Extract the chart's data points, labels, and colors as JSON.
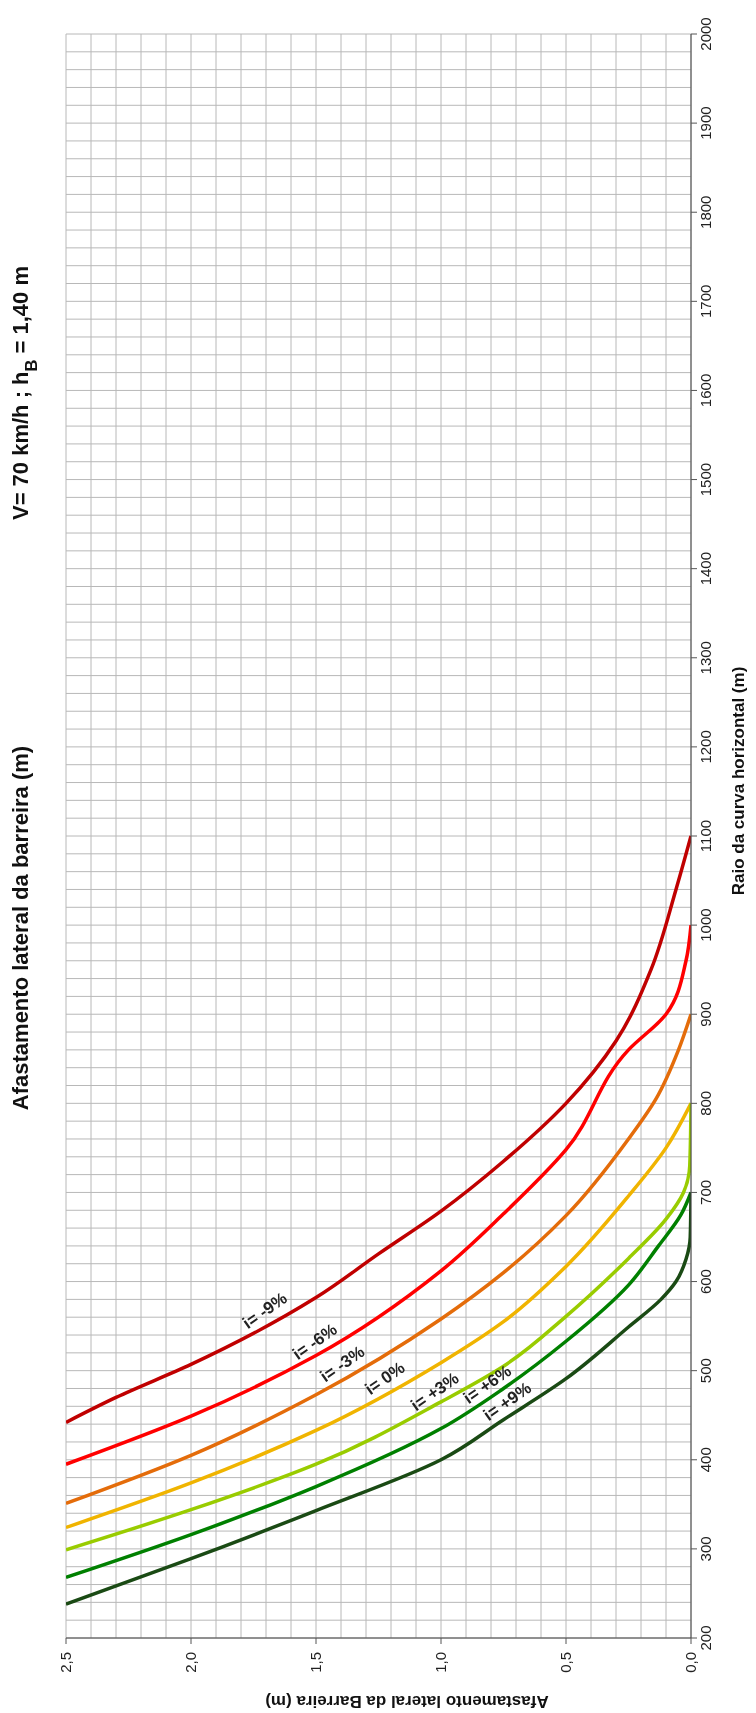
{
  "chart_data": {
    "type": "line",
    "title": "Afastamento lateral da barreira (m)",
    "subtitle": "V= 70 km/h ; h$_{B}$ = 1,40 m",
    "xlabel": "Afastamento lateral da Barreira (m)",
    "ylabel": "Raio da curva horizontal (m)",
    "xlim": [
      2.5,
      0
    ],
    "xticks": [
      {
        "value": 2.5,
        "label": "2,5"
      },
      {
        "value": 2.4,
        "label": null
      },
      {
        "value": 2.3,
        "label": null
      },
      {
        "value": 2.2,
        "label": null
      },
      {
        "value": 2.1,
        "label": null
      },
      {
        "value": 2,
        "label": "2,0"
      },
      {
        "value": 1.9,
        "label": null
      },
      {
        "value": 1.8,
        "label": null
      },
      {
        "value": 1.7,
        "label": null
      },
      {
        "value": 1.6,
        "label": null
      },
      {
        "value": 1.5,
        "label": "1,5"
      },
      {
        "value": 1.4,
        "label": null
      },
      {
        "value": 1.3,
        "label": null
      },
      {
        "value": 1.2,
        "label": null
      },
      {
        "value": 1.1,
        "label": null
      },
      {
        "value": 1,
        "label": "1,0"
      },
      {
        "value": 0.9,
        "label": null
      },
      {
        "value": 0.8,
        "label": null
      },
      {
        "value": 0.7,
        "label": null
      },
      {
        "value": 0.6,
        "label": null
      },
      {
        "value": 0.5,
        "label": "0,5"
      },
      {
        "value": 0.4,
        "label": null
      },
      {
        "value": 0.3,
        "label": null
      },
      {
        "value": 0.2,
        "label": null
      },
      {
        "value": 0.1,
        "label": null
      },
      {
        "value": 0,
        "label": "0,0"
      }
    ],
    "ylim": [
      200,
      2000
    ],
    "yticks": [
      200,
      {
        "value": 220,
        "label": null
      },
      {
        "value": 240,
        "label": null
      },
      {
        "value": 260,
        "label": null
      },
      {
        "value": 280,
        "label": null
      },
      300,
      {
        "value": 320,
        "label": null
      },
      {
        "value": 340,
        "label": null
      },
      {
        "value": 360,
        "label": null
      },
      {
        "value": 380,
        "label": null
      },
      400,
      {
        "value": 420,
        "label": null
      },
      {
        "value": 440,
        "label": null
      },
      {
        "value": 460,
        "label": null
      },
      {
        "value": 480,
        "label": null
      },
      500,
      {
        "value": 520,
        "label": null
      },
      {
        "value": 540,
        "label": null
      },
      {
        "value": 560,
        "label": null
      },
      {
        "value": 580,
        "label": null
      },
      600,
      {
        "value": 620,
        "label": null
      },
      {
        "value": 640,
        "label": null
      },
      {
        "value": 660,
        "label": null
      },
      {
        "value": 680,
        "label": null
      },
      700,
      {
        "value": 720,
        "label": null
      },
      {
        "value": 740,
        "label": null
      },
      {
        "value": 760,
        "label": null
      },
      {
        "value": 780,
        "label": null
      },
      800,
      {
        "value": 820,
        "label": null
      },
      {
        "value": 840,
        "label": null
      },
      {
        "value": 860,
        "label": null
      },
      {
        "value": 880,
        "label": null
      },
      900,
      {
        "value": 920,
        "label": null
      },
      {
        "value": 940,
        "label": null
      },
      {
        "value": 960,
        "label": null
      },
      {
        "value": 980,
        "label": null
      },
      1000,
      {
        "value": 1020,
        "label": null
      },
      {
        "value": 1040,
        "label": null
      },
      {
        "value": 1060,
        "label": null
      },
      {
        "value": 1080,
        "label": null
      },
      1100,
      {
        "value": 1120,
        "label": null
      },
      {
        "value": 1140,
        "label": null
      },
      {
        "value": 1160,
        "label": null
      },
      {
        "value": 1180,
        "label": null
      },
      1200,
      {
        "value": 1220,
        "label": null
      },
      {
        "value": 1240,
        "label": null
      },
      {
        "value": 1260,
        "label": null
      },
      {
        "value": 1280,
        "label": null
      },
      1300,
      {
        "value": 1320,
        "label": null
      },
      {
        "value": 1340,
        "label": null
      },
      {
        "value": 1360,
        "label": null
      },
      {
        "value": 1380,
        "label": null
      },
      1400,
      {
        "value": 1420,
        "label": null
      },
      {
        "value": 1440,
        "label": null
      },
      {
        "value": 1460,
        "label": null
      },
      {
        "value": 1480,
        "label": null
      },
      1500,
      {
        "value": 1520,
        "label": null
      },
      {
        "value": 1540,
        "label": null
      },
      {
        "value": 1560,
        "label": null
      },
      {
        "value": 1580,
        "label": null
      },
      1600,
      {
        "value": 1620,
        "label": null
      },
      {
        "value": 1640,
        "label": null
      },
      {
        "value": 1660,
        "label": null
      },
      {
        "value": 1680,
        "label": null
      },
      1700,
      {
        "value": 1720,
        "label": null
      },
      {
        "value": 1740,
        "label": null
      },
      {
        "value": 1760,
        "label": null
      },
      {
        "value": 1780,
        "label": null
      },
      1800,
      {
        "value": 1820,
        "label": null
      },
      {
        "value": 1840,
        "label": null
      },
      {
        "value": 1860,
        "label": null
      },
      {
        "value": 1880,
        "label": null
      },
      1900,
      {
        "value": 1920,
        "label": null
      },
      {
        "value": 1940,
        "label": null
      },
      {
        "value": 1960,
        "label": null
      },
      {
        "value": 1980,
        "label": null
      },
      2000
    ],
    "grid": true,
    "marker": "none",
    "line_style": "solid",
    "series": [
      {
        "color": "#c00000",
        "x": [
          2.5,
          2.3,
          2.0,
          1.5,
          1.25,
          1.0,
          0.75,
          0.5,
          0.3,
          0.16,
          0.06,
          0
        ],
        "values": [
          442,
          470,
          507,
          582,
          631,
          679,
          735,
          800,
          870,
          950,
          1040,
          1100
        ]
      },
      {
        "color": "#ff0000",
        "x": [
          2.5,
          2.0,
          1.5,
          1.0,
          0.75,
          0.5,
          0.25,
          0.1,
          0.02,
          0
        ],
        "values": [
          395,
          449,
          517,
          612,
          676,
          748,
          860,
          900,
          960,
          1000
        ]
      },
      {
        "color": "#e46c0a",
        "x": [
          2.5,
          2.0,
          1.5,
          1.0,
          0.75,
          0.5,
          0.25,
          0.14,
          0.05,
          0
        ],
        "values": [
          351,
          405,
          473,
          558,
          610,
          674,
          760,
          805,
          860,
          900
        ]
      },
      {
        "color": "#f0b400",
        "x": [
          2.5,
          2.0,
          1.5,
          1.0,
          0.75,
          0.5,
          0.25,
          0.1,
          0
        ],
        "values": [
          324,
          374,
          433,
          509,
          555,
          617,
          696,
          750,
          800
        ]
      },
      {
        "color": "#99cc00",
        "x": [
          2.5,
          2.0,
          1.5,
          1.0,
          0.75,
          0.5,
          0.25,
          0.1,
          0.03,
          0.005,
          0
        ],
        "values": [
          299,
          344,
          395,
          465,
          505,
          561,
          626,
          670,
          700,
          730,
          800
        ]
      },
      {
        "color": "#008000",
        "x": [
          2.5,
          2.0,
          1.5,
          1.0,
          0.75,
          0.5,
          0.25,
          0.13,
          0.04,
          0
        ],
        "values": [
          268,
          316,
          370,
          435,
          480,
          533,
          596,
          640,
          675,
          700
        ]
      },
      {
        "color": "#1a4a14",
        "x": [
          2.5,
          2.0,
          1.5,
          1.0,
          0.75,
          0.5,
          0.25,
          0.12,
          0.06,
          0.02,
          0.003,
          0
        ],
        "values": [
          238,
          289,
          343,
          400,
          445,
          491,
          549,
          580,
          600,
          625,
          650,
          700
        ]
      }
    ],
    "annotations": [
      {
        "text": "i= -9%",
        "x": 1.68,
        "y": 555
      },
      {
        "text": "i= -6%",
        "x": 1.48,
        "y": 520
      },
      {
        "text": "i= -3%",
        "x": 1.37,
        "y": 495
      },
      {
        "text": "i= 0%",
        "x": 1.2,
        "y": 479
      },
      {
        "text": "i= +3%",
        "x": 1.0,
        "y": 464
      },
      {
        "text": "i= +6%",
        "x": 0.79,
        "y": 472
      },
      {
        "text": "i= +9%",
        "x": 0.71,
        "y": 453
      }
    ]
  }
}
